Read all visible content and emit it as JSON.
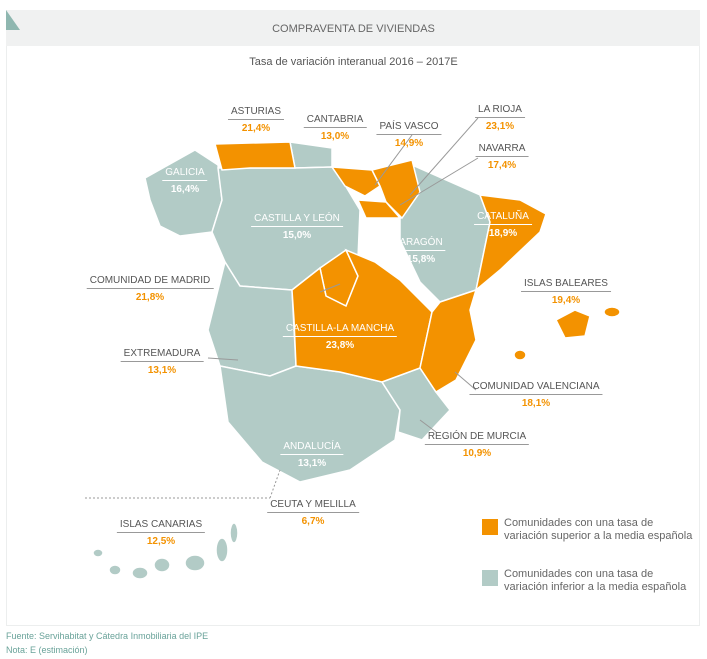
{
  "header": {
    "title": "COMPRAVENTA DE VIVIENDAS",
    "subtitle": "Tasa de variación interanual 2016 – 2017E"
  },
  "colors": {
    "above": "#f39200",
    "below": "#b2cbc6"
  },
  "regions": [
    {
      "name": "ASTURIAS",
      "value": "21,4%",
      "group": "above"
    },
    {
      "name": "CANTABRIA",
      "value": "13,0%",
      "group": "below"
    },
    {
      "name": "PAÍS VASCO",
      "value": "14,9%",
      "group": "below"
    },
    {
      "name": "LA RIOJA",
      "value": "23,1%",
      "group": "above"
    },
    {
      "name": "NAVARRA",
      "value": "17,4%",
      "group": "above"
    },
    {
      "name": "GALICIA",
      "value": "16,4%",
      "group": "below"
    },
    {
      "name": "CASTILLA Y LEÓN",
      "value": "15,0%",
      "group": "below"
    },
    {
      "name": "CATALUÑA",
      "value": "18,9%",
      "group": "above"
    },
    {
      "name": "ARAGÓN",
      "value": "15,8%",
      "group": "below"
    },
    {
      "name": "COMUNIDAD DE MADRID",
      "value": "21,8%",
      "group": "above"
    },
    {
      "name": "ISLAS BALEARES",
      "value": "19,4%",
      "group": "above"
    },
    {
      "name": "CASTILLA-LA MANCHA",
      "value": "23,8%",
      "group": "above"
    },
    {
      "name": "EXTREMADURA",
      "value": "13,1%",
      "group": "below"
    },
    {
      "name": "COMUNIDAD VALENCIANA",
      "value": "18,1%",
      "group": "above"
    },
    {
      "name": "ANDALUCÍA",
      "value": "13,1%",
      "group": "below"
    },
    {
      "name": "REGIÓN DE MURCIA",
      "value": "10,9%",
      "group": "below"
    },
    {
      "name": "CEUTA Y MELILLA",
      "value": "6,7%",
      "group": "below"
    },
    {
      "name": "ISLAS CANARIAS",
      "value": "12,5%",
      "group": "below"
    }
  ],
  "legend": [
    {
      "label": "Comunidades con una tasa de variación superior a la media española",
      "color": "#f39200"
    },
    {
      "label": "Comunidades con una tasa de variación inferior a la media española",
      "color": "#b2cbc6"
    }
  ],
  "footer": {
    "source": "Fuente: Servihabitat y Cátedra Inmobiliaria del IPE",
    "note": "Nota: E (estimación)"
  }
}
